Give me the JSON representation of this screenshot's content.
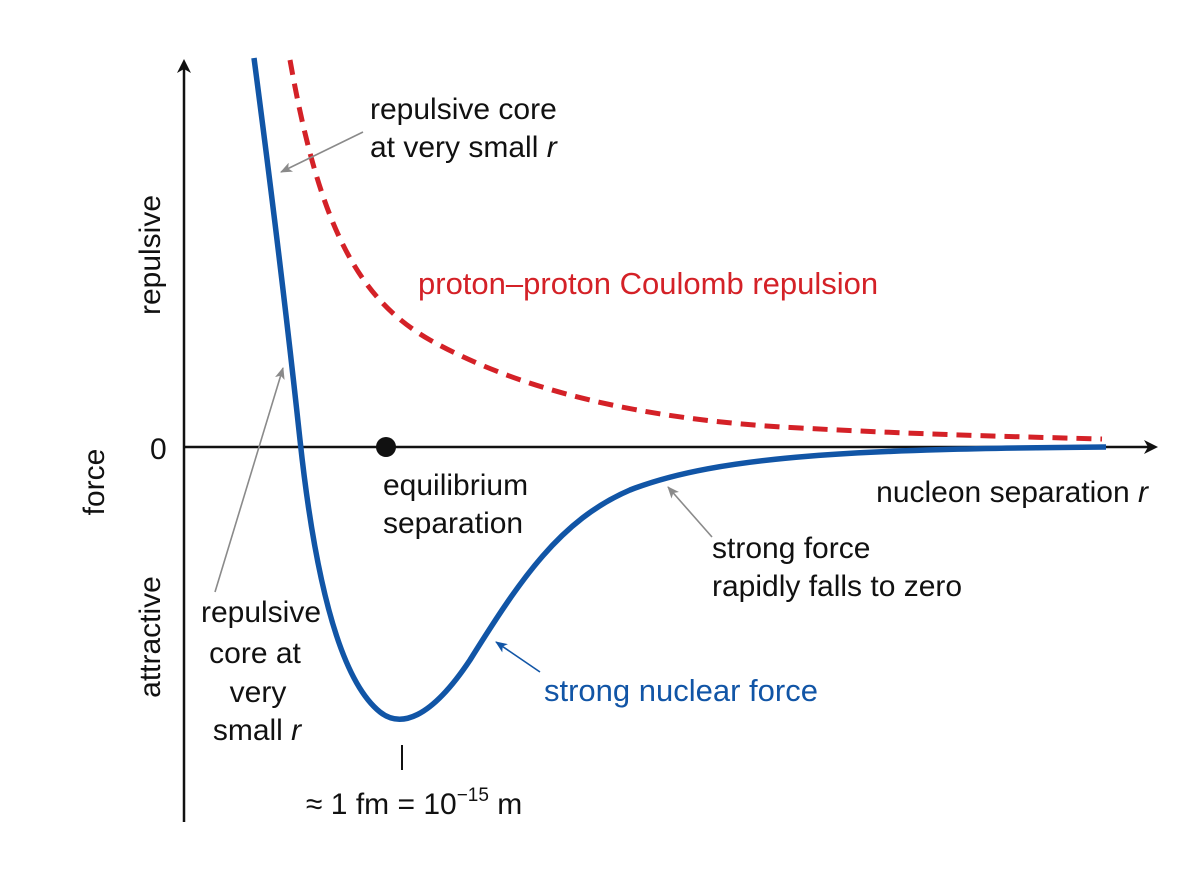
{
  "labels": {
    "y_axis": "force",
    "repulsive": "repulsive",
    "attractive": "attractive",
    "zero": "0",
    "x_axis_main": "nucleon separation ",
    "x_axis_var": "r",
    "coulomb": "proton–proton Coulomb repulsion",
    "strong": "strong nuclear force",
    "equilibrium_1": "equilibrium",
    "equilibrium_2": "separation",
    "core_top_1": "repulsive core",
    "core_top_2": "at very small ",
    "core_top_var": "r",
    "core_left_1": "repulsive",
    "core_left_2": "core at",
    "core_left_3": "very",
    "core_left_4": "small ",
    "core_left_var": "r",
    "falls_1": "strong force",
    "falls_2": "rapidly falls to zero",
    "scale_approx": "≈ 1 fm = 10",
    "scale_exp": "−15",
    "scale_unit": " m"
  },
  "colors": {
    "strong": "#1155a6",
    "coulomb": "#d42127",
    "axis": "#111111",
    "pointer": "#8a8a8a"
  }
}
